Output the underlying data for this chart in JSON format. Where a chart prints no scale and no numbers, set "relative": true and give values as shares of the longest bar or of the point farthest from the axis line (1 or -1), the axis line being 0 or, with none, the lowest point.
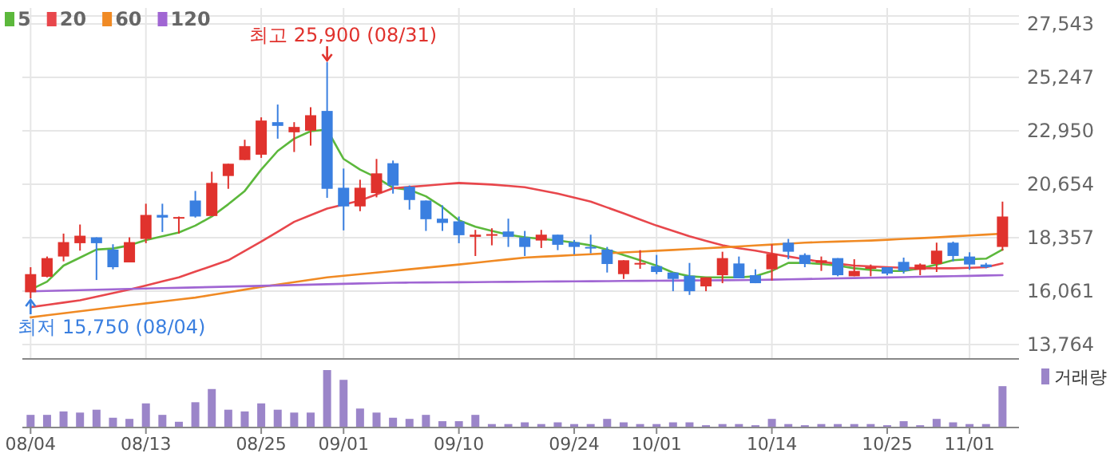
{
  "chart_data": [
    {
      "type": "candlestick",
      "categories": [
        null,
        null,
        null,
        null,
        null,
        null,
        null,
        null,
        null,
        null,
        null,
        null,
        null,
        null,
        null,
        null,
        null,
        null,
        null,
        null,
        null,
        null,
        null,
        null,
        null,
        null,
        null,
        null,
        null,
        null,
        null,
        null,
        null,
        null,
        null,
        null,
        null,
        null,
        null,
        null,
        null,
        null,
        null,
        null,
        null,
        null,
        null,
        null,
        null,
        null,
        null,
        null,
        null,
        null,
        null,
        null,
        null,
        null,
        null,
        null
      ],
      "ohlc": [
        [
          16010,
          17087,
          15750,
          16789
        ],
        [
          16675,
          17546,
          16650,
          17477
        ],
        [
          17546,
          18531,
          17339,
          18165
        ],
        [
          18119,
          18921,
          17798,
          18440
        ],
        [
          18371,
          18371,
          16537,
          18119
        ],
        [
          17844,
          18073,
          16996,
          17087
        ],
        [
          17293,
          18371,
          17293,
          18165
        ],
        [
          18302,
          19815,
          18119,
          19333
        ],
        [
          19333,
          19815,
          18600,
          19219
        ],
        [
          19196,
          19265,
          18531,
          19242
        ],
        [
          19952,
          20365,
          19219,
          19265
        ],
        [
          19288,
          21190,
          19288,
          20709
        ],
        [
          21007,
          21534,
          20456,
          21534
        ],
        [
          21694,
          22565,
          21694,
          22290
        ],
        [
          21923,
          23528,
          21786,
          23390
        ],
        [
          23321,
          24078,
          22611,
          23161
        ],
        [
          22886,
          23321,
          22038,
          23115
        ],
        [
          22955,
          23963,
          22313,
          23619
        ],
        [
          23803,
          25900,
          20067,
          20456
        ],
        [
          20502,
          21327,
          18669,
          19700
        ],
        [
          19700,
          20846,
          19494,
          20502
        ],
        [
          20273,
          21740,
          20090,
          21121
        ],
        [
          21556,
          21671,
          20250,
          20594
        ],
        [
          20548,
          20600,
          19562,
          19975
        ],
        [
          19952,
          19952,
          18646,
          19150
        ],
        [
          19173,
          19746,
          18646,
          18989
        ],
        [
          19058,
          19264,
          18118,
          18462
        ],
        [
          18393,
          18691,
          17568,
          18485
        ],
        [
          18439,
          18760,
          18027,
          18508
        ],
        [
          18622,
          19173,
          17958,
          18393
        ],
        [
          18370,
          18646,
          17568,
          17958
        ],
        [
          18233,
          18691,
          17912,
          18485
        ],
        [
          18485,
          18485,
          17820,
          18050
        ],
        [
          18164,
          18256,
          17637,
          17958
        ],
        [
          17958,
          18485,
          17683,
          17912
        ],
        [
          17843,
          17958,
          16858,
          17224
        ],
        [
          16789,
          17385,
          16583,
          17385
        ],
        [
          17201,
          17820,
          17018,
          17270
        ],
        [
          17133,
          17614,
          16789,
          16881
        ],
        [
          16858,
          16858,
          16055,
          16583
        ],
        [
          16720,
          17270,
          15895,
          16055
        ],
        [
          16262,
          16652,
          16055,
          16652
        ],
        [
          16743,
          17751,
          16399,
          17477
        ],
        [
          17247,
          17545,
          16606,
          16606
        ],
        [
          16743,
          16996,
          16400,
          16400
        ],
        [
          16996,
          18073,
          16514,
          17660
        ],
        [
          18142,
          18302,
          17431,
          17752
        ],
        [
          17614,
          17683,
          17087,
          17225
        ],
        [
          17271,
          17546,
          16927,
          17385
        ],
        [
          17477,
          17477,
          16698,
          16743
        ],
        [
          16698,
          17431,
          16698,
          16927
        ],
        [
          17019,
          17202,
          16698,
          17087
        ],
        [
          17087,
          17087,
          16743,
          16812
        ],
        [
          17316,
          17500,
          16812,
          16927
        ],
        [
          16973,
          17248,
          16743,
          17202
        ],
        [
          17225,
          18142,
          16881,
          17798
        ],
        [
          18142,
          18187,
          17339,
          17569
        ],
        [
          17546,
          17729,
          16973,
          17202
        ],
        [
          17202,
          17271,
          17042,
          17087
        ],
        [
          17958,
          19906,
          17798,
          19265
        ]
      ],
      "colors": [
        "#e0322d",
        "#e0322d",
        "#e0322d",
        "#e0322d",
        "#3a7fe0",
        "#3a7fe0",
        "#e0322d",
        "#e0322d",
        "#3a7fe0",
        "#e0322d",
        "#3a7fe0",
        "#e0322d",
        "#e0322d",
        "#e0322d",
        "#e0322d",
        "#3a7fe0",
        "#e0322d",
        "#e0322d",
        "#3a7fe0",
        "#3a7fe0",
        "#e0322d",
        "#e0322d",
        "#3a7fe0",
        "#3a7fe0",
        "#3a7fe0",
        "#3a7fe0",
        "#3a7fe0",
        "#e0322d",
        "#e0322d",
        "#3a7fe0",
        "#3a7fe0",
        "#e0322d",
        "#3a7fe0",
        "#3a7fe0",
        "#3a7fe0",
        "#3a7fe0",
        "#e0322d",
        "#e0322d",
        "#3a7fe0",
        "#3a7fe0",
        "#3a7fe0",
        "#e0322d",
        "#e0322d",
        "#3a7fe0",
        "#3a7fe0",
        "#e0322d",
        "#3a7fe0",
        "#3a7fe0",
        "#e0322d",
        "#3a7fe0",
        "#e0322d",
        "#e0322d",
        "#3a7fe0",
        "#3a7fe0",
        "#e0322d",
        "#e0322d",
        "#3a7fe0",
        "#3a7fe0",
        "#3a7fe0",
        "#e0322d"
      ],
      "series": [
        {
          "name": "5",
          "type": "line",
          "color": "#5cb83c",
          "values": [
            16125,
            16468,
            17156,
            17500,
            17844,
            17889,
            18027,
            18256,
            18417,
            18577,
            18875,
            19265,
            19792,
            20365,
            21282,
            22084,
            22611,
            22932,
            23001,
            21740,
            21282,
            20938,
            20500,
            20410,
            20135,
            19677,
            19104,
            18829,
            18646,
            18485,
            18370,
            18302,
            18233,
            18141,
            18027,
            17843,
            17614,
            17385,
            17156,
            16858,
            16697,
            16651,
            16651,
            16652,
            16698,
            16927,
            17271,
            17271,
            17225,
            17156,
            17041,
            16973,
            16927,
            16927,
            17041,
            17202,
            17385,
            17431,
            17454,
            17844
          ]
        },
        {
          "name": "20",
          "type": "line",
          "color": "#e8474c",
          "values": [
            15368,
            15467,
            15567,
            15666,
            15819,
            15972,
            16125,
            16301,
            16476,
            16652,
            16896,
            17141,
            17385,
            17787,
            18188,
            18612,
            19036,
            19322,
            19608,
            19780,
            19952,
            20216,
            20480,
            20537,
            20594,
            20651,
            20708,
            20674,
            20640,
            20583,
            20525,
            20388,
            20250,
            20078,
            19906,
            19654,
            19402,
            19139,
            18875,
            18646,
            18416,
            18222,
            18027,
            17900,
            17798,
            17672,
            17546,
            17431,
            17316,
            17236,
            17156,
            17122,
            17087,
            17064,
            17041,
            17041,
            17041,
            17064,
            17087,
            17248
          ]
        },
        {
          "name": "60",
          "type": "line",
          "color": "#f08a24",
          "values": [
            14933,
            15020,
            15106,
            15193,
            15280,
            15366,
            15449,
            15532,
            15614,
            15697,
            15780,
            15895,
            16010,
            16124,
            16239,
            16342,
            16446,
            16549,
            16652,
            16721,
            16790,
            16858,
            16927,
            16996,
            17065,
            17133,
            17202,
            17277,
            17351,
            17426,
            17500,
            17537,
            17573,
            17610,
            17646,
            17683,
            17720,
            17756,
            17793,
            17829,
            17866,
            17903,
            17941,
            17978,
            18019,
            18060,
            18101,
            18142,
            18165,
            18188,
            18210,
            18233,
            18267,
            18302,
            18336,
            18370,
            18410,
            18450,
            18489,
            18529
          ]
        },
        {
          "name": "120",
          "type": "line",
          "color": "#a066d3",
          "values": [
            16050,
            16067,
            16084,
            16100,
            16117,
            16134,
            16151,
            16168,
            16185,
            16201,
            16218,
            16235,
            16252,
            16269,
            16286,
            16302,
            16319,
            16336,
            16353,
            16370,
            16387,
            16403,
            16420,
            16425,
            16431,
            16436,
            16441,
            16447,
            16452,
            16457,
            16462,
            16468,
            16473,
            16478,
            16484,
            16489,
            16494,
            16500,
            16505,
            16510,
            16516,
            16521,
            16526,
            16532,
            16537,
            16551,
            16565,
            16578,
            16592,
            16606,
            16620,
            16634,
            16647,
            16661,
            16675,
            16689,
            16703,
            16716,
            16730,
            16744
          ]
        }
      ],
      "ylim": [
        13145,
        27886
      ],
      "yticks": [
        {
          "value": 13764,
          "label": "13,764"
        },
        {
          "value": 16061,
          "label": "16,061"
        },
        {
          "value": 18357,
          "label": "18,357"
        },
        {
          "value": 20654,
          "label": "20,654"
        },
        {
          "value": 22950,
          "label": "22,950"
        },
        {
          "value": 25247,
          "label": "25,247"
        },
        {
          "value": 27543,
          "label": "27,543"
        }
      ],
      "grid": true,
      "legend": "top left",
      "tick_labels": "y",
      "annotations": [
        "최고 25,900 (08/31)",
        "최저 15,750 (08/04)"
      ]
    },
    {
      "type": "bar",
      "relative": true,
      "legend": "top right",
      "tick_labels": "x",
      "categories": [
        "08/04",
        null,
        null,
        null,
        null,
        null,
        null,
        "08/13",
        null,
        null,
        null,
        null,
        null,
        null,
        "08/25",
        null,
        null,
        null,
        null,
        "09/01",
        null,
        null,
        null,
        null,
        null,
        null,
        "09/10",
        null,
        null,
        null,
        null,
        null,
        null,
        "09/24",
        null,
        null,
        null,
        null,
        "10/01",
        null,
        null,
        null,
        null,
        null,
        null,
        "10/14",
        null,
        null,
        null,
        null,
        null,
        null,
        "10/25",
        null,
        null,
        null,
        null,
        "11/01",
        null,
        null
      ],
      "series": [
        {
          "name": "거래량",
          "color": "#9b85c9",
          "values": [
            0.22,
            0.22,
            0.28,
            0.26,
            0.31,
            0.17,
            0.15,
            0.42,
            0.22,
            0.1,
            0.44,
            0.67,
            0.31,
            0.28,
            0.42,
            0.31,
            0.26,
            0.26,
            1,
            0.83,
            0.33,
            0.26,
            0.17,
            0.15,
            0.22,
            0.11,
            0.11,
            0.22,
            0.06,
            0.06,
            0.09,
            0.06,
            0.09,
            0.06,
            0.06,
            0.15,
            0.09,
            0.06,
            0.06,
            0.09,
            0.09,
            0.04,
            0.06,
            0.06,
            0.04,
            0.15,
            0.06,
            0.04,
            0.06,
            0.06,
            0.06,
            0.06,
            0.04,
            0.11,
            0.04,
            0.15,
            0.09,
            0.06,
            0.06,
            0.72
          ]
        }
      ]
    }
  ]
}
